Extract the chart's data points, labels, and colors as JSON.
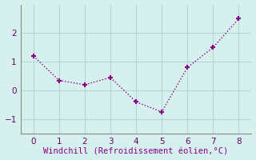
{
  "x": [
    0,
    1,
    2,
    3,
    4,
    5,
    6,
    7,
    8
  ],
  "y": [
    1.2,
    0.35,
    0.2,
    0.45,
    -0.4,
    -0.75,
    0.8,
    1.5,
    2.5
  ],
  "line_color": "#8B008B",
  "marker": "+",
  "marker_size": 5,
  "linewidth": 1.0,
  "linestyle": "dotted",
  "xlabel": "Windchill (Refroidissement éolien,°C)",
  "xlabel_color": "#8B008B",
  "xlabel_fontsize": 7.5,
  "background_color": "#d6f0ee",
  "grid_color": "#b0d8d4",
  "spine_color": "#888888",
  "tick_color": "#660066",
  "ylim": [
    -1.5,
    3.0
  ],
  "xlim": [
    -0.5,
    8.5
  ],
  "yticks": [
    -1,
    0,
    1,
    2
  ],
  "xticks": [
    0,
    1,
    2,
    3,
    4,
    5,
    6,
    7,
    8
  ],
  "tick_fontsize": 7.5
}
